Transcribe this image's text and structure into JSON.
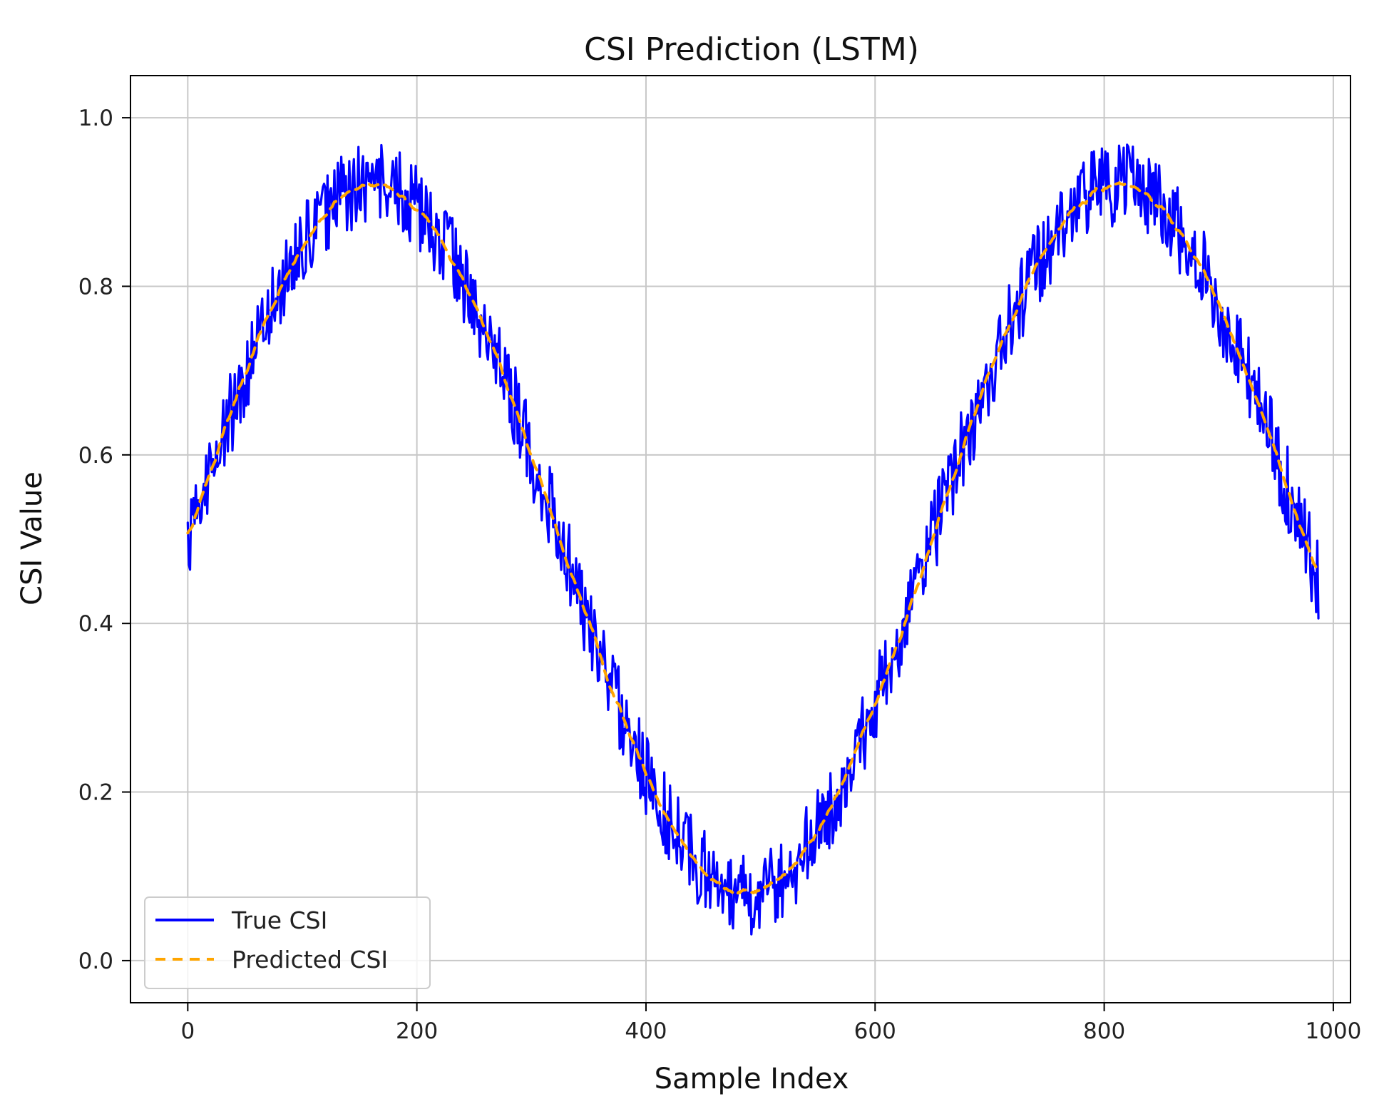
{
  "chart_data": {
    "type": "line",
    "title": "CSI Prediction (LSTM)",
    "xlabel": "Sample Index",
    "ylabel": "CSI Value",
    "xlim": [
      -50,
      1015
    ],
    "ylim": [
      -0.05,
      1.05
    ],
    "xticks": [
      0,
      200,
      400,
      600,
      800,
      1000
    ],
    "xtick_labels": [
      "0",
      "200",
      "400",
      "600",
      "800",
      "1000"
    ],
    "yticks": [
      0.0,
      0.2,
      0.4,
      0.6,
      0.8,
      1.0
    ],
    "ytick_labels": [
      "0.0",
      "0.2",
      "0.4",
      "0.6",
      "0.8",
      "1.0"
    ],
    "grid": true,
    "legend_position": "lower-left",
    "series": [
      {
        "name": "True CSI",
        "label": "True CSI",
        "color": "#0000ff",
        "style": "solid",
        "x_start": 0,
        "x_end": 987,
        "shape": "sinusoid",
        "period": 650,
        "offset": 0.5,
        "amplitude": 0.42,
        "noise_amplitude": 0.05,
        "sample_count": 988
      },
      {
        "name": "Predicted CSI",
        "label": "Predicted CSI",
        "color": "#ffa500",
        "style": "dashed",
        "x_start": 0,
        "x_end": 987,
        "shape": "smoothed sinusoid",
        "period": 650,
        "offset": 0.5,
        "amplitude": 0.42,
        "noise_amplitude": 0.01,
        "sample_count": 988
      }
    ]
  }
}
